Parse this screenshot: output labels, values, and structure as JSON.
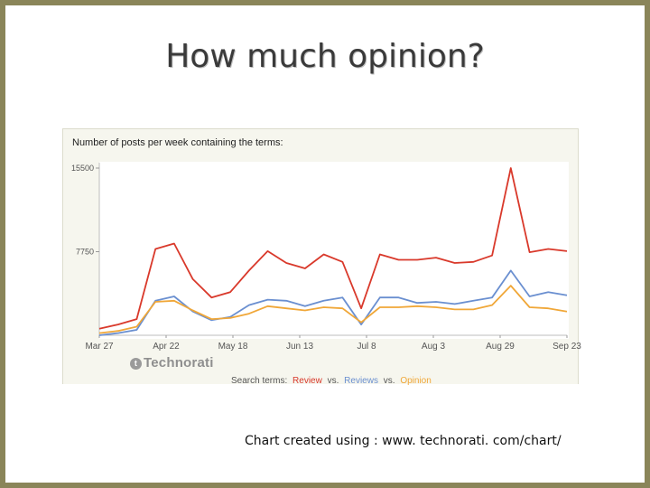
{
  "slide": {
    "title": "How much opinion?",
    "caption": "Chart created using : www. technorati. com/chart/"
  },
  "logo": {
    "text": "Technorati",
    "mark": "t"
  },
  "legend_text": {
    "prefix": "Search terms:",
    "item1": "Review",
    "sep1": "vs.",
    "item2": "Reviews",
    "sep2": "vs.",
    "item3": "Opinion"
  },
  "chart_data": {
    "type": "line",
    "title": "Number of posts per week containing the terms:",
    "ylim": [
      0,
      15500
    ],
    "yticks": [
      15500,
      7750
    ],
    "x_tick_labels": [
      "Mar 27",
      "Apr 22",
      "May 18",
      "Jun 13",
      "Jul 8",
      "Aug 3",
      "Aug 29",
      "Sep 23"
    ],
    "x_tick_index": [
      0,
      4,
      8,
      12,
      16,
      20,
      24,
      28
    ],
    "legend_placement": "bottom",
    "grid": false,
    "series": [
      {
        "name": "Review",
        "color": "#d9392b",
        "values": [
          600,
          1000,
          1500,
          8000,
          8500,
          5200,
          3500,
          4000,
          6000,
          7800,
          6700,
          6200,
          7500,
          6800,
          2500,
          7500,
          7000,
          7000,
          7200,
          6700,
          6800,
          7400,
          15500,
          7700,
          8000,
          7800
        ]
      },
      {
        "name": "Reviews",
        "color": "#6a8fd0",
        "values": [
          0,
          200,
          500,
          3200,
          3600,
          2200,
          1400,
          1700,
          2800,
          3300,
          3200,
          2700,
          3200,
          3500,
          1000,
          3500,
          3500,
          3000,
          3100,
          2900,
          3200,
          3500,
          6000,
          3600,
          4000,
          3700
        ]
      },
      {
        "name": "Opinion",
        "color": "#f0a738",
        "values": [
          200,
          400,
          800,
          3100,
          3200,
          2300,
          1500,
          1600,
          2000,
          2700,
          2500,
          2300,
          2600,
          2500,
          1200,
          2600,
          2600,
          2700,
          2600,
          2400,
          2400,
          2800,
          4600,
          2600,
          2500,
          2200
        ]
      }
    ]
  }
}
